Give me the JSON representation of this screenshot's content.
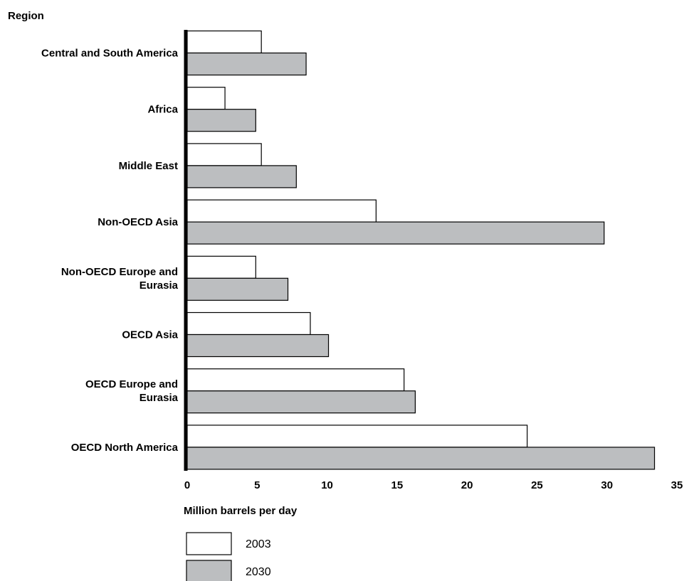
{
  "chart_data": {
    "type": "bar",
    "orientation": "horizontal",
    "ylabel": "Region",
    "xlabel": "Million barrels per day",
    "categories": [
      [
        "Central and South America"
      ],
      [
        "Africa"
      ],
      [
        "Middle East"
      ],
      [
        "Non-OECD Asia"
      ],
      [
        "Non-OECD Europe and",
        "Eurasia"
      ],
      [
        "OECD Asia"
      ],
      [
        "OECD Europe and",
        "Eurasia"
      ],
      [
        "OECD North America"
      ]
    ],
    "series": [
      {
        "name": "2003",
        "color": "#ffffff",
        "values": [
          5.3,
          2.7,
          5.3,
          13.5,
          4.9,
          8.8,
          15.5,
          24.3
        ]
      },
      {
        "name": "2030",
        "color": "#bcbec0",
        "values": [
          8.5,
          4.9,
          7.8,
          29.8,
          7.2,
          10.1,
          16.3,
          33.4
        ]
      }
    ],
    "xlim": [
      0,
      35
    ],
    "xticks": [
      "0",
      "5",
      "10",
      "15",
      "20",
      "25",
      "30",
      "35"
    ],
    "grid": false,
    "legend_position": "bottom-left"
  }
}
